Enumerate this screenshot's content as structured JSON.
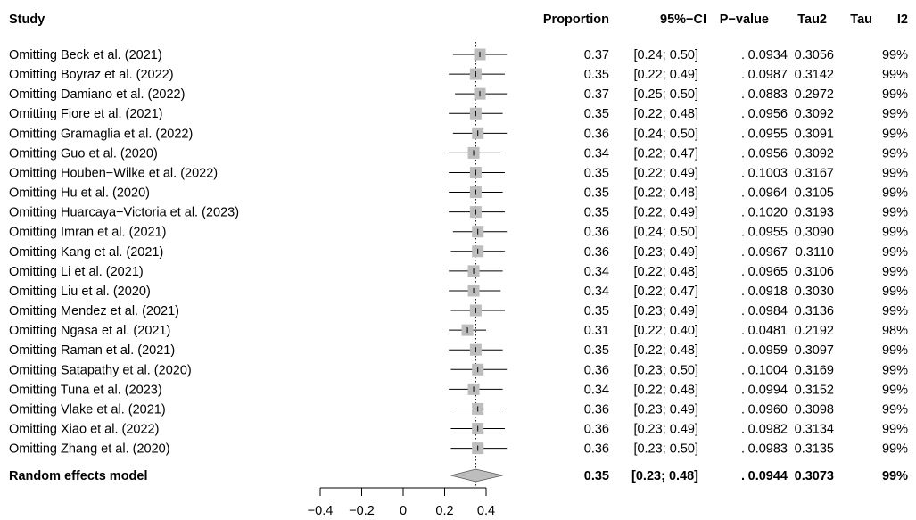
{
  "chart_data": {
    "type": "forest",
    "headers": {
      "study": "Study",
      "proportion": "Proportion",
      "ci": "95%−CI",
      "pvalue": "P−value",
      "tau2": "Tau2",
      "tau": "Tau",
      "i2": "I2"
    },
    "rows": [
      {
        "study": "Omitting Beck et al. (2021)",
        "estimate": 0.37,
        "lower": 0.24,
        "upper": 0.5,
        "proportion": "0.37",
        "ci": "[0.24; 0.50]",
        "pvalue": ".",
        "tau2": "0.0934",
        "tau": "0.3056",
        "i2": "99%"
      },
      {
        "study": "Omitting Boyraz et al. (2022)",
        "estimate": 0.35,
        "lower": 0.22,
        "upper": 0.49,
        "proportion": "0.35",
        "ci": "[0.22; 0.49]",
        "pvalue": ".",
        "tau2": "0.0987",
        "tau": "0.3142",
        "i2": "99%"
      },
      {
        "study": "Omitting Damiano et al. (2022)",
        "estimate": 0.37,
        "lower": 0.25,
        "upper": 0.5,
        "proportion": "0.37",
        "ci": "[0.25; 0.50]",
        "pvalue": ".",
        "tau2": "0.0883",
        "tau": "0.2972",
        "i2": "99%"
      },
      {
        "study": "Omitting Fiore et al. (2021)",
        "estimate": 0.35,
        "lower": 0.22,
        "upper": 0.48,
        "proportion": "0.35",
        "ci": "[0.22; 0.48]",
        "pvalue": ".",
        "tau2": "0.0956",
        "tau": "0.3092",
        "i2": "99%"
      },
      {
        "study": "Omitting Gramaglia et al. (2022)",
        "estimate": 0.36,
        "lower": 0.24,
        "upper": 0.5,
        "proportion": "0.36",
        "ci": "[0.24; 0.50]",
        "pvalue": ".",
        "tau2": "0.0955",
        "tau": "0.3091",
        "i2": "99%"
      },
      {
        "study": "Omitting Guo et al. (2020)",
        "estimate": 0.34,
        "lower": 0.22,
        "upper": 0.47,
        "proportion": "0.34",
        "ci": "[0.22; 0.47]",
        "pvalue": ".",
        "tau2": "0.0956",
        "tau": "0.3092",
        "i2": "99%"
      },
      {
        "study": "Omitting Houben−Wilke et al. (2022)",
        "estimate": 0.35,
        "lower": 0.22,
        "upper": 0.49,
        "proportion": "0.35",
        "ci": "[0.22; 0.49]",
        "pvalue": ".",
        "tau2": "0.1003",
        "tau": "0.3167",
        "i2": "99%"
      },
      {
        "study": "Omitting Hu et al. (2020)",
        "estimate": 0.35,
        "lower": 0.22,
        "upper": 0.48,
        "proportion": "0.35",
        "ci": "[0.22; 0.48]",
        "pvalue": ".",
        "tau2": "0.0964",
        "tau": "0.3105",
        "i2": "99%"
      },
      {
        "study": "Omitting Huarcaya−Victoria et al. (2023)",
        "estimate": 0.35,
        "lower": 0.22,
        "upper": 0.49,
        "proportion": "0.35",
        "ci": "[0.22; 0.49]",
        "pvalue": ".",
        "tau2": "0.1020",
        "tau": "0.3193",
        "i2": "99%"
      },
      {
        "study": "Omitting Imran et al. (2021)",
        "estimate": 0.36,
        "lower": 0.24,
        "upper": 0.5,
        "proportion": "0.36",
        "ci": "[0.24; 0.50]",
        "pvalue": ".",
        "tau2": "0.0955",
        "tau": "0.3090",
        "i2": "99%"
      },
      {
        "study": "Omitting Kang et al. (2021)",
        "estimate": 0.36,
        "lower": 0.23,
        "upper": 0.49,
        "proportion": "0.36",
        "ci": "[0.23; 0.49]",
        "pvalue": ".",
        "tau2": "0.0967",
        "tau": "0.3110",
        "i2": "99%"
      },
      {
        "study": "Omitting Li et al. (2021)",
        "estimate": 0.34,
        "lower": 0.22,
        "upper": 0.48,
        "proportion": "0.34",
        "ci": "[0.22; 0.48]",
        "pvalue": ".",
        "tau2": "0.0965",
        "tau": "0.3106",
        "i2": "99%"
      },
      {
        "study": "Omitting Liu et al. (2020)",
        "estimate": 0.34,
        "lower": 0.22,
        "upper": 0.47,
        "proportion": "0.34",
        "ci": "[0.22; 0.47]",
        "pvalue": ".",
        "tau2": "0.0918",
        "tau": "0.3030",
        "i2": "99%"
      },
      {
        "study": "Omitting Mendez et al. (2021)",
        "estimate": 0.35,
        "lower": 0.23,
        "upper": 0.49,
        "proportion": "0.35",
        "ci": "[0.23; 0.49]",
        "pvalue": ".",
        "tau2": "0.0984",
        "tau": "0.3136",
        "i2": "99%"
      },
      {
        "study": "Omitting Ngasa et al. (2021)",
        "estimate": 0.31,
        "lower": 0.22,
        "upper": 0.4,
        "proportion": "0.31",
        "ci": "[0.22; 0.40]",
        "pvalue": ".",
        "tau2": "0.0481",
        "tau": "0.2192",
        "i2": "98%"
      },
      {
        "study": "Omitting Raman et al. (2021)",
        "estimate": 0.35,
        "lower": 0.22,
        "upper": 0.48,
        "proportion": "0.35",
        "ci": "[0.22; 0.48]",
        "pvalue": ".",
        "tau2": "0.0959",
        "tau": "0.3097",
        "i2": "99%"
      },
      {
        "study": "Omitting Satapathy et al. (2020)",
        "estimate": 0.36,
        "lower": 0.23,
        "upper": 0.5,
        "proportion": "0.36",
        "ci": "[0.23; 0.50]",
        "pvalue": ".",
        "tau2": "0.1004",
        "tau": "0.3169",
        "i2": "99%"
      },
      {
        "study": "Omitting Tuna et al. (2023)",
        "estimate": 0.34,
        "lower": 0.22,
        "upper": 0.48,
        "proportion": "0.34",
        "ci": "[0.22; 0.48]",
        "pvalue": ".",
        "tau2": "0.0994",
        "tau": "0.3152",
        "i2": "99%"
      },
      {
        "study": "Omitting Vlake et al. (2021)",
        "estimate": 0.36,
        "lower": 0.23,
        "upper": 0.49,
        "proportion": "0.36",
        "ci": "[0.23; 0.49]",
        "pvalue": ".",
        "tau2": "0.0960",
        "tau": "0.3098",
        "i2": "99%"
      },
      {
        "study": "Omitting Xiao et al. (2022)",
        "estimate": 0.36,
        "lower": 0.23,
        "upper": 0.49,
        "proportion": "0.36",
        "ci": "[0.23; 0.49]",
        "pvalue": ".",
        "tau2": "0.0982",
        "tau": "0.3134",
        "i2": "99%"
      },
      {
        "study": "Omitting Zhang et al. (2020)",
        "estimate": 0.36,
        "lower": 0.23,
        "upper": 0.5,
        "proportion": "0.36",
        "ci": "[0.23; 0.50]",
        "pvalue": ".",
        "tau2": "0.0983",
        "tau": "0.3135",
        "i2": "99%"
      }
    ],
    "summary": {
      "study": "Random effects model",
      "estimate": 0.35,
      "lower": 0.23,
      "upper": 0.48,
      "proportion": "0.35",
      "ci": "[0.23; 0.48]",
      "pvalue": ".",
      "tau2": "0.0944",
      "tau": "0.3073",
      "i2": "99%"
    },
    "x_ticks": [
      -0.4,
      -0.2,
      0,
      0.2,
      0.4
    ],
    "x_tick_labels": [
      "−0.4",
      "−0.2",
      "0",
      "0.2",
      "0.4"
    ],
    "xlim": [
      -0.4,
      0.4
    ],
    "reference_line": 0.35,
    "grid": false,
    "colors": {
      "box": "#bdbdbd",
      "diamond": "#bdbdbd",
      "line": "#000000"
    }
  }
}
